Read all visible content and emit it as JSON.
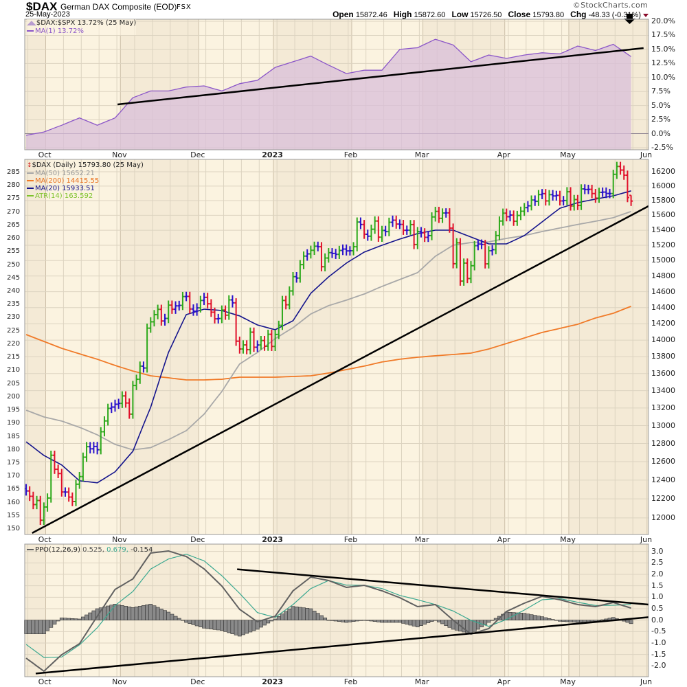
{
  "header": {
    "symbol": "$DAX",
    "name": "German DAX Composite (EOD)",
    "exchange": "FSX",
    "date": "25-May-2023",
    "watermark": "©StockCharts.com",
    "open_label": "Open",
    "open": "15872.46",
    "high_label": "High",
    "high": "15872.60",
    "low_label": "Low",
    "low": "15726.50",
    "close_label": "Close",
    "close": "15793.80",
    "chg_label": "Chg",
    "chg": "-48.33 (-0.31%)"
  },
  "colors": {
    "up": "#2ca81a",
    "down": "#e0102a",
    "flat": "#2810cc",
    "ma20": "#14148c",
    "ma50": "#a8a8a8",
    "ma200": "#f07a28",
    "rs_line": "#8a55c8",
    "rs_fill": "#d9bfd9",
    "ppo": "#606060",
    "signal": "#3aa890",
    "hist": "#8a8a8a",
    "trendline": "#000000",
    "band_a": "#fbf3e0",
    "band_b": "#f4ead6",
    "grid": "#dcd3c0"
  },
  "x_axis": {
    "bar_count": 171,
    "sample_every": 5,
    "months": [
      {
        "label": "Oct",
        "index": 6
      },
      {
        "label": "Nov",
        "index": 27
      },
      {
        "label": "Dec",
        "index": 49
      },
      {
        "label": "2023",
        "index": 70,
        "year": true
      },
      {
        "label": "Feb",
        "index": 92
      },
      {
        "label": "Mar",
        "index": 112
      },
      {
        "label": "Apr",
        "index": 135
      },
      {
        "label": "May",
        "index": 153
      },
      {
        "label": "Jun",
        "index": 175
      }
    ]
  },
  "chart_data": [
    {
      "id": "relative-strength",
      "type": "area",
      "legend": [
        "$DAX:$SPX 13.72% (25 May)",
        "MA(1) 13.72%"
      ],
      "ylim": [
        -2.87,
        20.37
      ],
      "y_ticks": [
        "20.0%",
        "17.5%",
        "15.0%",
        "12.5%",
        "10.0%",
        "7.5%",
        "5.0%",
        "2.5%",
        "0.0%",
        "-2.5%"
      ],
      "values": [
        -0.3,
        0.3,
        1.5,
        2.8,
        1.5,
        2.8,
        6.4,
        7.6,
        7.6,
        8.3,
        8.5,
        7.6,
        8.9,
        9.5,
        11.8,
        12.8,
        13.8,
        12.2,
        10.7,
        11.3,
        11.3,
        15.0,
        15.3,
        16.8,
        15.8,
        12.8,
        14.0,
        13.4,
        14.0,
        14.4,
        14.2,
        15.6,
        14.8,
        15.9,
        13.72
      ],
      "trendline": [
        [
          25.7,
          5.2
        ],
        [
          173.5,
          15.23
        ]
      ],
      "annotation": "down-arrow"
    },
    {
      "id": "price",
      "type": "ohlc",
      "scale": "log",
      "legend": [
        {
          "label": "$DAX (Daily) 15793.80 (25 May)",
          "key": "price"
        },
        {
          "label": "MA(50) 15652.21",
          "key": "ma50"
        },
        {
          "label": "MA(200) 14415.55",
          "key": "ma200"
        },
        {
          "label": "MA(20) 15933.51",
          "key": "ma20"
        },
        {
          "label": "ATR(14) 163.592",
          "key": "atr"
        }
      ],
      "ylim": [
        11829,
        16375
      ],
      "y_ticks": [
        16200,
        16000,
        15800,
        15600,
        15400,
        15200,
        15000,
        14800,
        14600,
        14400,
        14200,
        14000,
        13800,
        13600,
        13400,
        13200,
        13000,
        12800,
        12600,
        12400,
        12200,
        12000
      ],
      "left_ylim": [
        148.2,
        290.2
      ],
      "left_ticks": [
        285,
        280,
        275,
        270,
        265,
        260,
        255,
        250,
        245,
        240,
        235,
        230,
        225,
        220,
        215,
        210,
        205,
        200,
        195,
        190,
        185,
        180,
        175,
        170,
        165,
        160,
        155,
        150
      ],
      "closes": [
        12284,
        12227,
        12140,
        12183,
        11976,
        12114,
        12209,
        12670,
        12517,
        12471,
        12273,
        12272,
        12219,
        12172,
        12356,
        12438,
        12649,
        12765,
        12741,
        12767,
        12731,
        12931,
        13053,
        13196,
        13211,
        13243,
        13253,
        13339,
        13257,
        13130,
        13460,
        13533,
        13688,
        13666,
        14146,
        14224,
        14313,
        14379,
        14234,
        14266,
        14431,
        14380,
        14422,
        14428,
        14539,
        14541,
        14383,
        14356,
        14397,
        14490,
        14529,
        14448,
        14343,
        14261,
        14265,
        14370,
        14306,
        14497,
        14460,
        13987,
        13893,
        13942,
        13885,
        14097,
        13914,
        13941,
        13995,
        13926,
        14071,
        13924,
        14069,
        14181,
        14490,
        14436,
        14610,
        14792,
        14774,
        14947,
        15058,
        15087,
        15134,
        15187,
        15181,
        14920,
        15033,
        15103,
        15093,
        15081,
        15132,
        15150,
        15126,
        15128,
        15181,
        15509,
        15476,
        15346,
        15320,
        15413,
        15523,
        15307,
        15397,
        15381,
        15506,
        15534,
        15482,
        15477,
        15399,
        15400,
        15475,
        15210,
        15381,
        15365,
        15305,
        15328,
        15578,
        15653,
        15559,
        15631,
        15633,
        15428,
        14959,
        15233,
        14735,
        14967,
        14768,
        14933,
        15195,
        15216,
        15210,
        14957,
        15128,
        15142,
        15329,
        15523,
        15629,
        15581,
        15603,
        15520,
        15598,
        15655,
        15704,
        15729,
        15808,
        15790,
        15883,
        15896,
        15796,
        15882,
        15864,
        15872,
        15796,
        15801,
        15922,
        15727,
        15815,
        15734,
        15961,
        15953,
        15955,
        15897,
        15834,
        15914,
        15917,
        15898,
        15897,
        16164,
        16275,
        16224,
        16152,
        15842,
        15794
      ],
      "last_bar": {
        "open": 15872.46,
        "high": 15872.6,
        "low": 15726.5,
        "close": 15793.8
      },
      "ma20": [
        12819,
        12668,
        12564,
        12393,
        12371,
        12489,
        12714,
        13208,
        13851,
        14313,
        14381,
        14364,
        14297,
        14185,
        14127,
        14237,
        14580,
        14789,
        14967,
        15110,
        15200,
        15282,
        15355,
        15401,
        15401,
        15309,
        15218,
        15218,
        15328,
        15511,
        15696,
        15772,
        15821,
        15866,
        15934
      ],
      "ma50": [
        13175,
        13098,
        13051,
        12981,
        12897,
        12790,
        12730,
        12754,
        12843,
        12943,
        13129,
        13390,
        13713,
        13851,
        14018,
        14152,
        14321,
        14425,
        14494,
        14571,
        14667,
        14755,
        14843,
        15056,
        15200,
        15236,
        15245,
        15291,
        15328,
        15382,
        15429,
        15476,
        15520,
        15568,
        15652
      ],
      "ma200": [
        14068,
        13984,
        13901,
        13835,
        13770,
        13696,
        13630,
        13574,
        13550,
        13525,
        13525,
        13533,
        13558,
        13558,
        13558,
        13566,
        13574,
        13606,
        13647,
        13688,
        13737,
        13770,
        13794,
        13811,
        13827,
        13843,
        13893,
        13959,
        14026,
        14094,
        14143,
        14194,
        14271,
        14330,
        14416
      ],
      "trendline": [
        [
          1.7,
          11844
        ],
        [
          174.9,
          15725
        ]
      ]
    },
    {
      "id": "ppo",
      "type": "line",
      "legend": {
        "label": "PPO(12,26,9)",
        "ppo": "0.525,",
        "signal": "0.679,",
        "hist": "-0.154"
      },
      "ylim": [
        -2.47,
        3.32
      ],
      "y_ticks": [
        "3.0",
        "2.5",
        "2.0",
        "1.5",
        "1.0",
        "0.5",
        "0.0",
        "-0.5",
        "-1.0",
        "-1.5",
        "-2.0"
      ],
      "ppo": [
        -1.66,
        -2.23,
        -1.51,
        -1.03,
        0.17,
        1.34,
        1.8,
        2.93,
        3.02,
        2.78,
        2.24,
        1.49,
        0.47,
        -0.07,
        0.17,
        1.28,
        1.88,
        1.73,
        1.43,
        1.52,
        1.28,
        0.98,
        0.59,
        0.68,
        0.0,
        -0.61,
        -0.37,
        0.38,
        0.74,
        1.04,
        0.89,
        0.68,
        0.59,
        0.77,
        0.525
      ],
      "signal": [
        -1.06,
        -1.63,
        -1.61,
        -1.08,
        -0.33,
        0.64,
        1.25,
        2.23,
        2.67,
        2.88,
        2.59,
        1.94,
        1.17,
        0.33,
        0.12,
        0.68,
        1.38,
        1.73,
        1.53,
        1.52,
        1.38,
        1.08,
        0.89,
        0.68,
        0.4,
        -0.01,
        -0.27,
        0.03,
        0.44,
        0.89,
        0.94,
        0.78,
        0.64,
        0.65,
        0.679
      ],
      "trendlines": [
        [
          [
            59.3,
            2.22
          ],
          [
            174.9,
            0.68
          ]
        ],
        [
          [
            2.7,
            -2.33
          ],
          [
            174.9,
            0.13
          ]
        ]
      ]
    }
  ]
}
